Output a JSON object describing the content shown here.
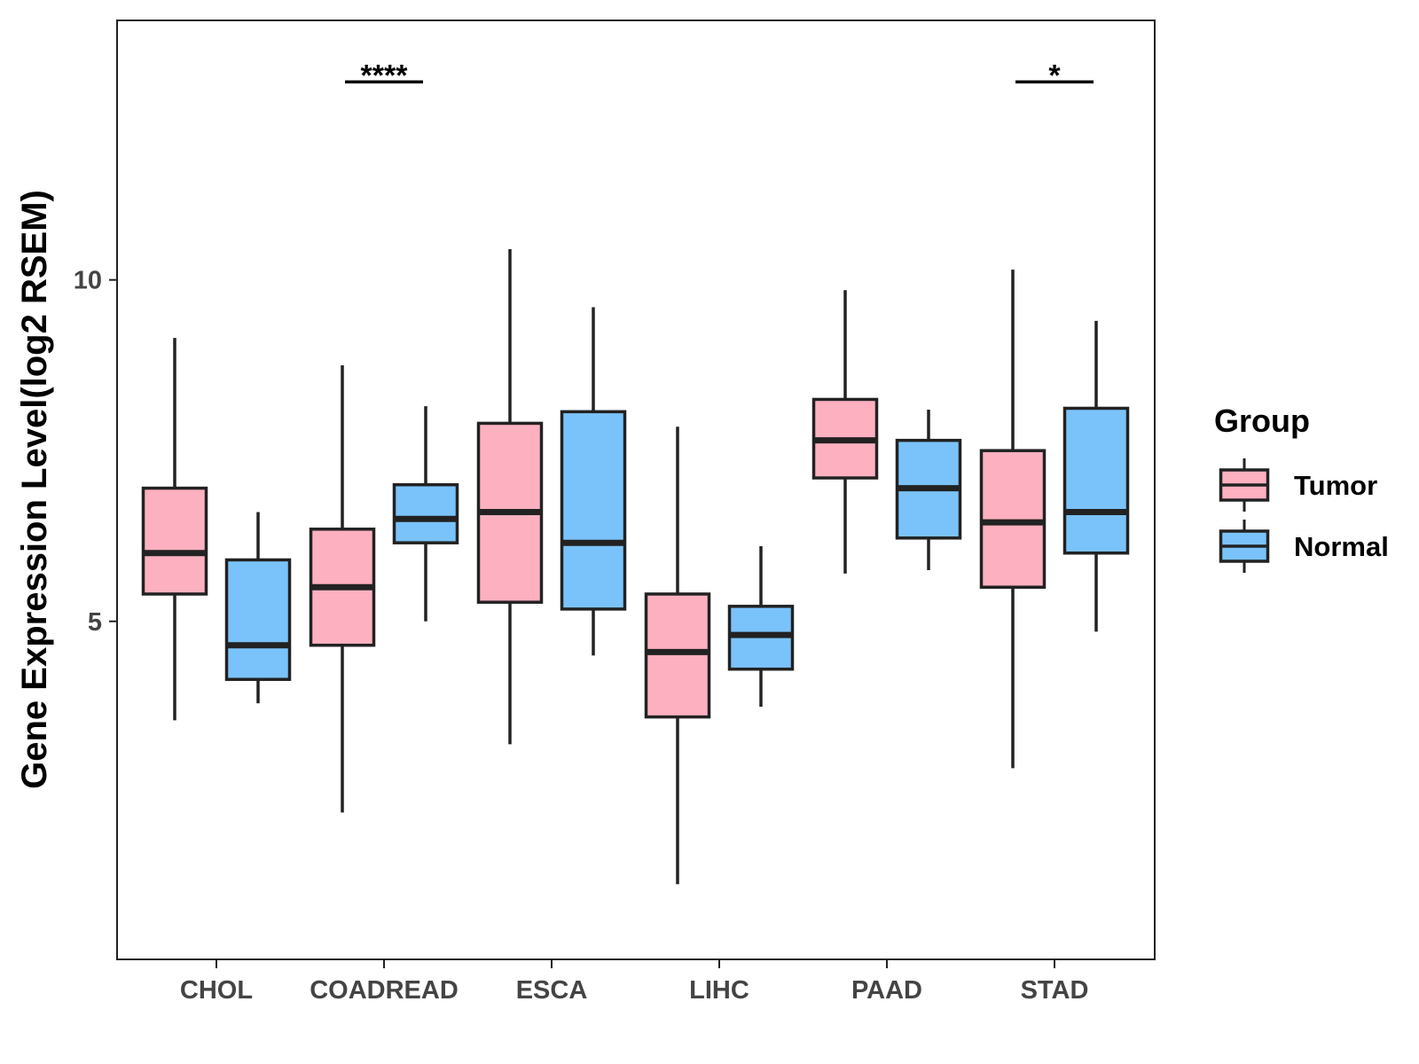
{
  "chart_data": {
    "type": "boxplot",
    "title": "",
    "xlabel": "",
    "ylabel": "Gene Expression Level(log2 RSEM)",
    "ylim": [
      0.05,
      13.8
    ],
    "yticks": [
      5,
      10
    ],
    "grid": false,
    "categories": [
      "CHOL",
      "COADREAD",
      "ESCA",
      "LIHC",
      "PAAD",
      "STAD"
    ],
    "legend": {
      "title": "Group",
      "position": "right",
      "entries": [
        {
          "name": "Tumor",
          "color": "#FDB0C0"
        },
        {
          "name": "Normal",
          "color": "#7AC3FA"
        }
      ]
    },
    "series": [
      {
        "name": "Tumor",
        "color": "#FDB0C0",
        "boxes": [
          {
            "min": 3.55,
            "q1": 5.4,
            "median": 6.0,
            "q3": 6.95,
            "max": 9.15
          },
          {
            "min": 2.2,
            "q1": 4.65,
            "median": 5.5,
            "q3": 6.35,
            "max": 8.75
          },
          {
            "min": 3.2,
            "q1": 5.28,
            "median": 6.6,
            "q3": 7.9,
            "max": 10.45
          },
          {
            "min": 1.15,
            "q1": 3.6,
            "median": 4.55,
            "q3": 5.4,
            "max": 7.85
          },
          {
            "min": 5.7,
            "q1": 7.1,
            "median": 7.65,
            "q3": 8.25,
            "max": 9.85
          },
          {
            "min": 2.85,
            "q1": 5.5,
            "median": 6.45,
            "q3": 7.5,
            "max": 10.15
          }
        ]
      },
      {
        "name": "Normal",
        "color": "#7AC3FA",
        "boxes": [
          {
            "min": 3.8,
            "q1": 4.15,
            "median": 4.65,
            "q3": 5.9,
            "max": 6.6
          },
          {
            "min": 5.0,
            "q1": 6.15,
            "median": 6.5,
            "q3": 7.0,
            "max": 8.15
          },
          {
            "min": 4.5,
            "q1": 5.18,
            "median": 6.15,
            "q3": 8.07,
            "max": 9.6
          },
          {
            "min": 3.75,
            "q1": 4.3,
            "median": 4.8,
            "q3": 5.22,
            "max": 6.1
          },
          {
            "min": 5.75,
            "q1": 6.22,
            "median": 6.95,
            "q3": 7.65,
            "max": 8.1
          },
          {
            "min": 4.85,
            "q1": 6.0,
            "median": 6.6,
            "q3": 8.12,
            "max": 9.4
          }
        ]
      }
    ],
    "annotations": [
      {
        "category": "COADREAD",
        "label": "****",
        "y": 12.9
      },
      {
        "category": "STAD",
        "label": "*",
        "y": 12.9
      }
    ]
  }
}
